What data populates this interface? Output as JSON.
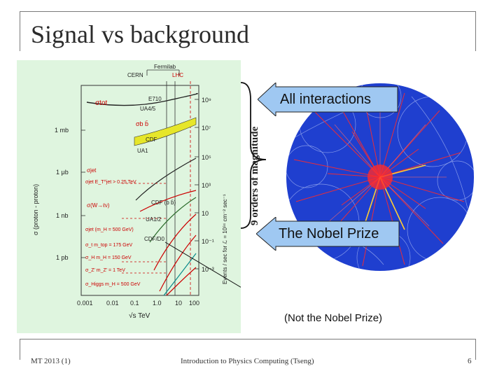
{
  "slide": {
    "title": "Signal vs background",
    "vertical_label": "9 orders of magnitude",
    "callout_top": "All interactions",
    "callout_bottom": "The Nobel Prize",
    "note": "(Not the Nobel Prize)",
    "footer_left": "MT 2013 (1)",
    "footer_center": "Introduction to Physics Computing (Tseng)",
    "footer_right": "6"
  },
  "plot": {
    "experiments": [
      "Fermilab",
      "CERN",
      "LHC"
    ],
    "y_left_ticks": [
      "1 mb",
      "1 μb",
      "1 nb",
      "1 pb"
    ],
    "y_right_ticks": [
      "10⁹",
      "10⁷",
      "10⁵",
      "10³",
      "10",
      "10⁻¹",
      "10⁻³"
    ],
    "x_ticks": [
      "0.001",
      "0.01",
      "0.1",
      "1.0",
      "10",
      "100"
    ],
    "x_label": "√s  TeV",
    "y_label_left": "σ (proton - proton)",
    "y_label_right": "Events / sec for ℒ = 10³⁴ cm⁻² sec⁻¹",
    "curve_labels": [
      "σtot",
      "σb b̄",
      "E710",
      "UA4/5",
      "CDF",
      "UA1",
      "σjet",
      "σ(W→ℓν)",
      "CDF (b b̄)",
      "UA1/2",
      "CDF/D0"
    ],
    "annotations": [
      "σjet E_T^jet > 0.25 TeV",
      "σjet (m_H = 500 GeV)",
      "σ_t  m_top = 175 GeV",
      "σ_H  m_H = 150 GeV",
      "σ_Z' m_Z' = 1 TeV",
      "σ_Higgs m_H = 500 GeV"
    ]
  },
  "colors": {
    "plot_bg": "#dff5df",
    "event_bg": "#1f3fcf",
    "callout_fill": "#9fc8f2",
    "tracks": "#ff2a2a"
  }
}
